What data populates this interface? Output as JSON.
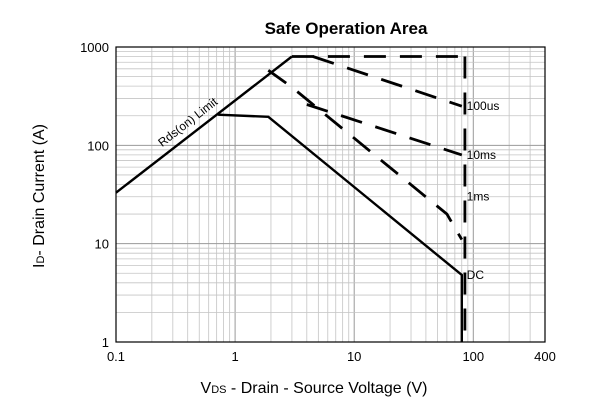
{
  "chart_data": {
    "type": "line",
    "title": "Safe Operation Area",
    "xlabel": {
      "main": "V",
      "sub": "DS",
      "rest": " - Drain - Source Voltage (V)"
    },
    "ylabel": {
      "main": "I",
      "sub": "D",
      "rest": "- Drain Current (A)"
    },
    "x_scale": "log",
    "y_scale": "log",
    "xlim": [
      0.1,
      400
    ],
    "ylim": [
      1,
      1000
    ],
    "grid": true,
    "x_ticks": [
      {
        "value": 0.1,
        "label": "0.1"
      },
      {
        "value": 1,
        "label": "1"
      },
      {
        "value": 10,
        "label": "10"
      },
      {
        "value": 100,
        "label": "100"
      },
      {
        "value": 400,
        "label": "400"
      }
    ],
    "y_ticks": [
      {
        "value": 1,
        "label": "1"
      },
      {
        "value": 10,
        "label": "10"
      },
      {
        "value": 100,
        "label": "100"
      },
      {
        "value": 1000,
        "label": "1000"
      }
    ],
    "series": [
      {
        "name": "Rds(on) Limit",
        "style": "solid",
        "x": [
          0.1,
          3.0
        ],
        "y": [
          33,
          800
        ]
      },
      {
        "name": "DC",
        "style": "solid",
        "x": [
          0.72,
          1.9,
          80,
          80
        ],
        "y": [
          205,
          195,
          4.8,
          1
        ]
      },
      {
        "name": "1ms",
        "style": "dashed",
        "x": [
          1.9,
          3.0,
          60,
          80
        ],
        "y": [
          580,
          390,
          20,
          11
        ]
      },
      {
        "name": "10ms",
        "style": "dashed",
        "x": [
          4.0,
          80
        ],
        "y": [
          260,
          80
        ]
      },
      {
        "name": "100us",
        "style": "dashed",
        "x": [
          4.5,
          80
        ],
        "y": [
          800,
          250
        ]
      },
      {
        "name": "",
        "style": "dashed",
        "x": [
          3.0,
          80
        ],
        "y": [
          800,
          800
        ]
      },
      {
        "name": "",
        "style": "dashed",
        "x": [
          85,
          85
        ],
        "y": [
          800,
          1
        ]
      }
    ],
    "annotations": [
      {
        "text": "Rds(on) Limit",
        "x": 0.42,
        "y": 160
      },
      {
        "text": "100us",
        "x": 88,
        "y": 250
      },
      {
        "text": "10ms",
        "x": 88,
        "y": 80
      },
      {
        "text": "1ms",
        "x": 88,
        "y": 30
      },
      {
        "text": "DC",
        "x": 88,
        "y": 4.8
      }
    ]
  }
}
